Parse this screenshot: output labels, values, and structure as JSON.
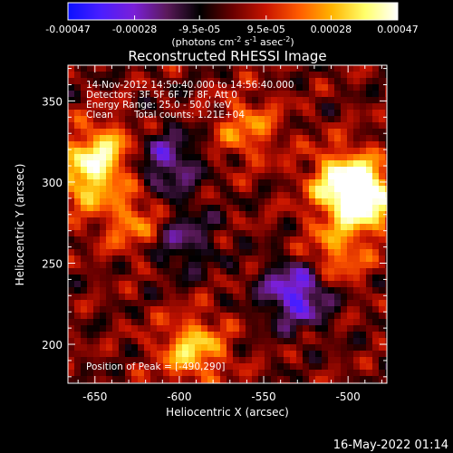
{
  "colorbar": {
    "tick_labels": [
      "-0.00047",
      "-0.00028",
      "-9.5e-05",
      "9.5e-05",
      "0.00028",
      "0.00047"
    ],
    "tick_values": [
      -0.00047,
      -0.00028,
      -9.5e-05,
      9.5e-05,
      0.00028,
      0.00047
    ],
    "range": [
      -0.00047,
      0.00047
    ],
    "units": {
      "base": "(photons cm",
      "sup1": "-2",
      "mid1": " s",
      "sup2": "-1",
      "mid2": " asec",
      "sup3": "-2",
      "end": ")"
    },
    "colors": [
      "#0a10ff",
      "#4a1eff",
      "#7a1fd8",
      "#5a1a5a",
      "#000000",
      "#6a0000",
      "#c81400",
      "#ff5a00",
      "#ffb400",
      "#ffff6a",
      "#ffffff"
    ]
  },
  "title": "Reconstructed RHESSI Image",
  "annotations": {
    "time_range": "14-Nov-2012 14:50:40.000 to 14:56:40.000",
    "detectors": "Detectors: 3F 5F 6F 7F 8F, Att 0",
    "energy": "Energy Range: 25.0 - 50.0 keV",
    "clean_label": "Clean",
    "total_counts": "Total counts: 1.21E+04",
    "peak": "Position of Peak = [-490,290]"
  },
  "footer": {
    "timestamp": "16-May-2022 01:14"
  },
  "chart_data": {
    "type": "heatmap",
    "title": "Reconstructed RHESSI Image",
    "xlabel": "Heliocentric X (arcsec)",
    "ylabel": "Heliocentric Y (arcsec)",
    "xlim": [
      -666,
      -477
    ],
    "ylim": [
      176,
      372
    ],
    "x_ticks": [
      -650,
      -600,
      -550,
      -500
    ],
    "y_ticks": [
      200,
      250,
      300,
      350
    ],
    "x_tick_labels": [
      "-650",
      "-600",
      "-550",
      "-500"
    ],
    "y_tick_labels": [
      "200",
      "250",
      "300",
      "350"
    ],
    "value_range": [
      -0.00047,
      0.00047
    ],
    "peak_position": [
      -490,
      290
    ],
    "bright_regions": [
      {
        "x": -490,
        "y": 290,
        "relative_intensity": 1.0
      },
      {
        "x": -503,
        "y": 300,
        "relative_intensity": 0.85
      },
      {
        "x": -645,
        "y": 318,
        "relative_intensity": 0.72
      },
      {
        "x": -592,
        "y": 197,
        "relative_intensity": 0.74
      },
      {
        "x": -657,
        "y": 300,
        "relative_intensity": 0.6
      },
      {
        "x": -625,
        "y": 275,
        "relative_intensity": 0.55
      },
      {
        "x": -560,
        "y": 333,
        "relative_intensity": 0.5
      },
      {
        "x": -508,
        "y": 255,
        "relative_intensity": 0.55
      }
    ],
    "dim_regions": [
      {
        "x": -530,
        "y": 232,
        "relative_intensity": -0.85
      },
      {
        "x": -608,
        "y": 312,
        "relative_intensity": -0.6
      },
      {
        "x": -600,
        "y": 265,
        "relative_intensity": -0.5
      }
    ]
  }
}
